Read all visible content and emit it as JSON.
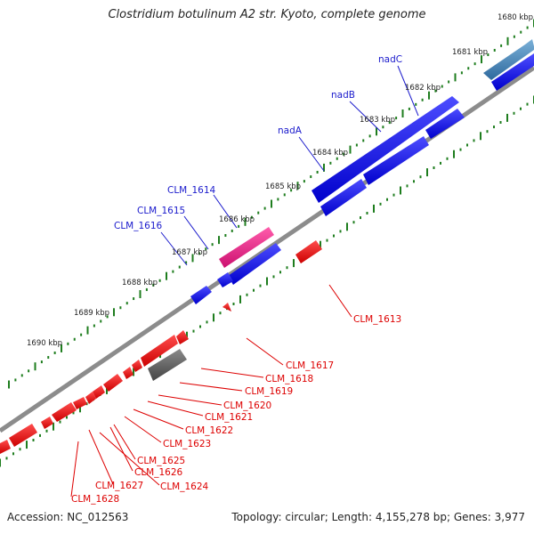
{
  "title": "Clostridium botulinum A2 str. Kyoto, complete genome",
  "footer": {
    "accession": "Accession: NC_012563",
    "topology": "Topology: circular; Length: 4,155,278 bp; Genes: 3,977"
  },
  "colors": {
    "forward_cds": "#0000e6",
    "reverse_cds": "#ee0000",
    "highlight_cds": "#e0207a",
    "rna": "#4a86b8",
    "gray_feature": "#666666",
    "backbone": "#888888",
    "ticks": "#1e7d1e",
    "fwd_label": "#1a1acc",
    "rev_label": "#dd0000"
  },
  "scale_labels": [
    "1680 kbp",
    "1681 kbp",
    "1682 kbp",
    "1683 kbp",
    "1684 kbp",
    "1685 kbp",
    "1686 kbp",
    "1687 kbp",
    "1688 kbp",
    "1689 kbp",
    "1690 kbp"
  ],
  "forward_labels": [
    "nadC",
    "nadB",
    "nadA",
    "CLM_1614",
    "CLM_1615",
    "CLM_1616"
  ],
  "reverse_labels": [
    "CLM_1613",
    "CLM_1617",
    "CLM_1618",
    "CLM_1619",
    "CLM_1620",
    "CLM_1621",
    "CLM_1622",
    "CLM_1623",
    "CLM_1624",
    "CLM_1625",
    "CLM_1626",
    "CLM_1627",
    "CLM_1628"
  ]
}
